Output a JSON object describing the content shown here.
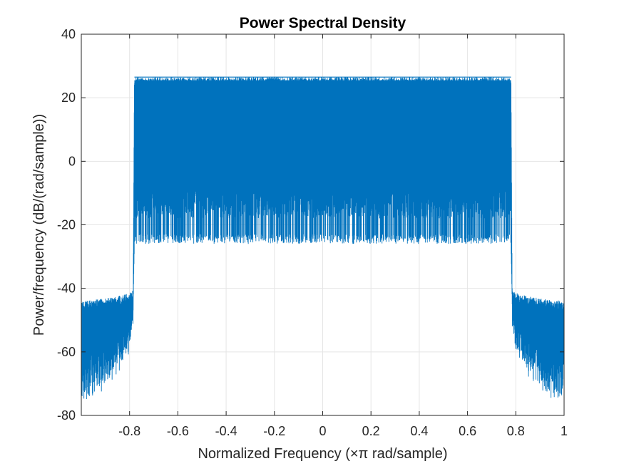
{
  "chart_data": {
    "type": "line",
    "title": "Power Spectral Density",
    "xlabel": "Normalized Frequency  (×π rad/sample)",
    "ylabel": "Power/frequency (dB/(rad/sample))",
    "xlim": [
      -1,
      1
    ],
    "ylim": [
      -80,
      40
    ],
    "xticks": [
      -0.8,
      -0.6,
      -0.4,
      -0.2,
      0,
      0.2,
      0.4,
      0.6,
      0.8,
      1
    ],
    "xtick_labels": [
      "-0.8",
      "-0.6",
      "-0.4",
      "-0.2",
      "0",
      "0.2",
      "0.4",
      "0.6",
      "0.8",
      "1"
    ],
    "yticks": [
      40,
      20,
      0,
      -20,
      -40,
      -60,
      -80
    ],
    "ytick_labels": [
      "40",
      "20",
      "0",
      "-20",
      "-40",
      "-60",
      "-80"
    ],
    "grid": true,
    "legend": false,
    "series_color": "#0072BD",
    "series": [
      {
        "passband": {
          "x_range": [
            -0.78,
            0.78
          ],
          "upper_db": 26.5,
          "lower_db": -26,
          "dense_floor_db": -8
        },
        "stopband": {
          "x_ranges": [
            [
              -1,
              -0.8
            ],
            [
              0.8,
              1
            ]
          ],
          "upper_db_at_edge": -44,
          "upper_db_at_transition": -40,
          "lower_db_at_edge": -74,
          "lower_db_at_transition": -45
        },
        "transition_x": 0.785
      }
    ]
  }
}
